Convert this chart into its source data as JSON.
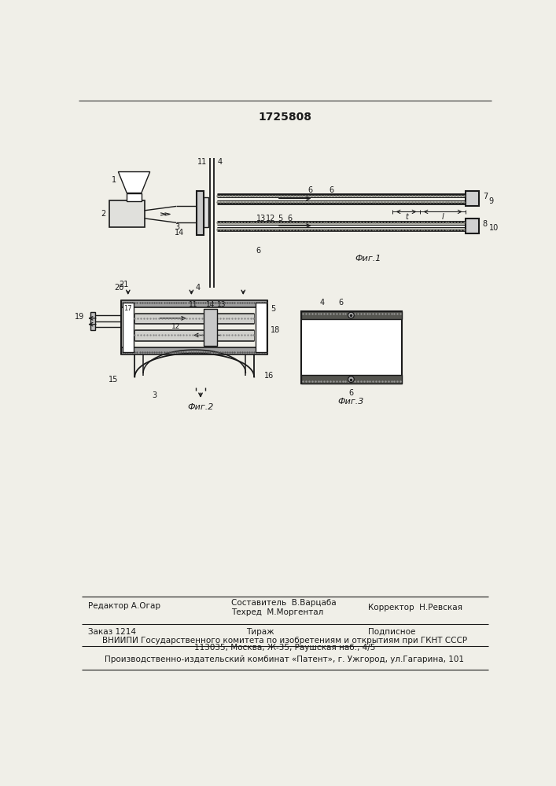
{
  "title": "1725808",
  "bg_color": "#f0efe8",
  "line_color": "#1a1a1a",
  "fig1_caption": "Фиг.1",
  "fig2_caption": "Фиг.2",
  "fig3_caption": "Фиг.3",
  "footer_editor": "Редактор А.Огар",
  "footer_author": "Составитель  В.Варцаба",
  "footer_techred": "Техред  М.Моргентал",
  "footer_corrector": "Корректор  Н.Ревская",
  "footer_order": "Заказ 1214",
  "footer_tiraj": "Тираж",
  "footer_podp": "Подписное",
  "footer_vniipii": "ВНИИПИ Государственного комитета по изобретениям и открытиям при ГКНТ СССР",
  "footer_addr": "113035, Москва, Ж-35, Раушская наб., 4/5",
  "footer_plant": "Производственно-издательский комбинат «Патент», г. Ужгород, ул.Гагарина, 101"
}
